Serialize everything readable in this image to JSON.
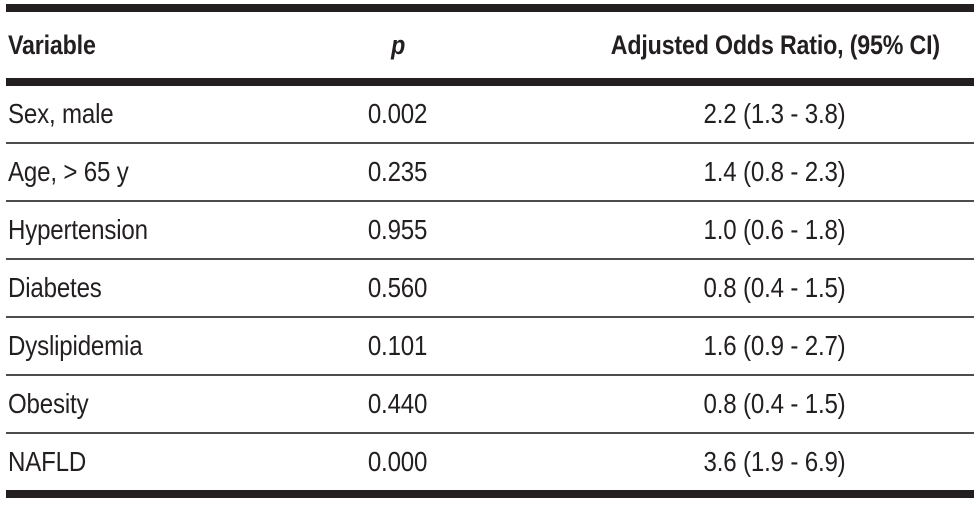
{
  "table": {
    "title_semantic": "Adjusted odds ratio table",
    "columns": [
      {
        "label": "Variable",
        "align": "left"
      },
      {
        "label": "p",
        "align": "center",
        "italic": true
      },
      {
        "label": "Adjusted Odds Ratio, (95% CI)",
        "align": "center"
      }
    ],
    "rows": [
      {
        "variable": "Sex, male",
        "p": "0.002",
        "aor": "2.2 (1.3 - 3.8)"
      },
      {
        "variable": "Age, > 65 y",
        "p": "0.235",
        "aor": "1.4 (0.8 - 2.3)"
      },
      {
        "variable": "Hypertension",
        "p": "0.955",
        "aor": "1.0 (0.6 - 1.8)"
      },
      {
        "variable": "Diabetes",
        "p": "0.560",
        "aor": "0.8 (0.4 - 1.5)"
      },
      {
        "variable": "Dyslipidemia",
        "p": "0.101",
        "aor": "1.6 (0.9 - 2.7)"
      },
      {
        "variable": "Obesity",
        "p": "0.440",
        "aor": "0.8 (0.4 - 1.5)"
      },
      {
        "variable": "NAFLD",
        "p": "0.000",
        "aor": "3.6 (1.9 - 6.9)"
      }
    ],
    "colors": {
      "text": "#231f20",
      "rule_thick": "#231f20",
      "rule_thin": "#4d4d4d",
      "background": "#ffffff"
    }
  }
}
